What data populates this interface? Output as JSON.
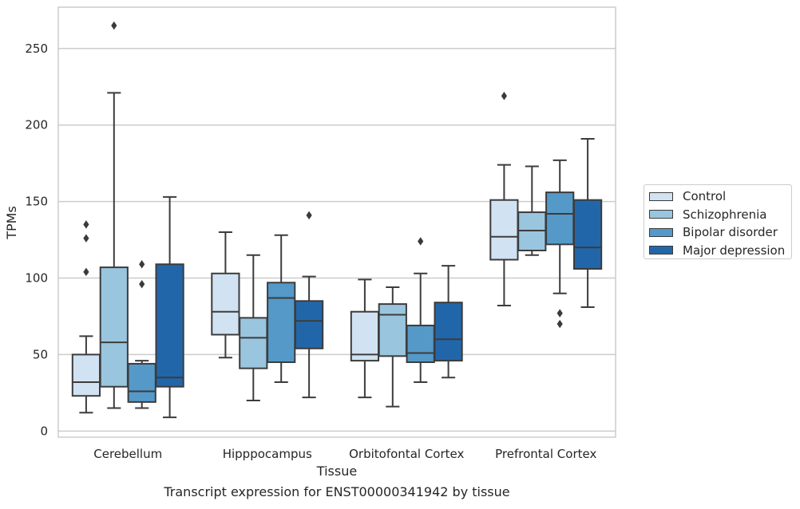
{
  "chart_data": {
    "type": "box",
    "caption": "Transcript expression for ENST00000341942 by tissue",
    "xlabel": "Tissue",
    "ylabel": "TPMs",
    "ylim": [
      -4,
      277
    ],
    "yticks": [
      0,
      50,
      100,
      150,
      200,
      250
    ],
    "grid": true,
    "legend_position": "right",
    "categories": [
      "Cerebellum",
      "Hipppocampus",
      "Orbitofontal Cortex",
      "Prefrontal Cortex"
    ],
    "series": [
      {
        "name": "Control",
        "color": "#d1e2f2",
        "boxes": [
          {
            "whisker_low": 12,
            "q1": 23,
            "median": 32,
            "q3": 50,
            "whisker_high": 62,
            "outliers": [
              104,
              126,
              135
            ]
          },
          {
            "whisker_low": 48,
            "q1": 63,
            "median": 78,
            "q3": 103,
            "whisker_high": 130,
            "outliers": []
          },
          {
            "whisker_low": 22,
            "q1": 46,
            "median": 50,
            "q3": 78,
            "whisker_high": 99,
            "outliers": []
          },
          {
            "whisker_low": 82,
            "q1": 112,
            "median": 127,
            "q3": 151,
            "whisker_high": 174,
            "outliers": [
              219
            ]
          }
        ]
      },
      {
        "name": "Schizophrenia",
        "color": "#9ac5de",
        "boxes": [
          {
            "whisker_low": 15,
            "q1": 29,
            "median": 58,
            "q3": 107,
            "whisker_high": 221,
            "outliers": [
              265
            ]
          },
          {
            "whisker_low": 20,
            "q1": 41,
            "median": 61,
            "q3": 74,
            "whisker_high": 115,
            "outliers": []
          },
          {
            "whisker_low": 16,
            "q1": 49,
            "median": 76,
            "q3": 83,
            "whisker_high": 94,
            "outliers": []
          },
          {
            "whisker_low": 115,
            "q1": 118,
            "median": 131,
            "q3": 143,
            "whisker_high": 173,
            "outliers": []
          }
        ]
      },
      {
        "name": "Bipolar disorder",
        "color": "#5599c8",
        "boxes": [
          {
            "whisker_low": 15,
            "q1": 19,
            "median": 26,
            "q3": 44,
            "whisker_high": 46,
            "outliers": [
              96,
              109
            ]
          },
          {
            "whisker_low": 32,
            "q1": 45,
            "median": 87,
            "q3": 97,
            "whisker_high": 128,
            "outliers": []
          },
          {
            "whisker_low": 32,
            "q1": 45,
            "median": 51,
            "q3": 69,
            "whisker_high": 103,
            "outliers": [
              124
            ]
          },
          {
            "whisker_low": 90,
            "q1": 122,
            "median": 142,
            "q3": 156,
            "whisker_high": 177,
            "outliers": [
              70,
              77
            ]
          }
        ]
      },
      {
        "name": "Major depression",
        "color": "#2266aa",
        "boxes": [
          {
            "whisker_low": 9,
            "q1": 29,
            "median": 35,
            "q3": 109,
            "whisker_high": 153,
            "outliers": []
          },
          {
            "whisker_low": 22,
            "q1": 54,
            "median": 72,
            "q3": 85,
            "whisker_high": 101,
            "outliers": [
              141
            ]
          },
          {
            "whisker_low": 35,
            "q1": 46,
            "median": 60,
            "q3": 84,
            "whisker_high": 108,
            "outliers": []
          },
          {
            "whisker_low": 81,
            "q1": 106,
            "median": 120,
            "q3": 151,
            "whisker_high": 191,
            "outliers": []
          }
        ]
      }
    ]
  }
}
